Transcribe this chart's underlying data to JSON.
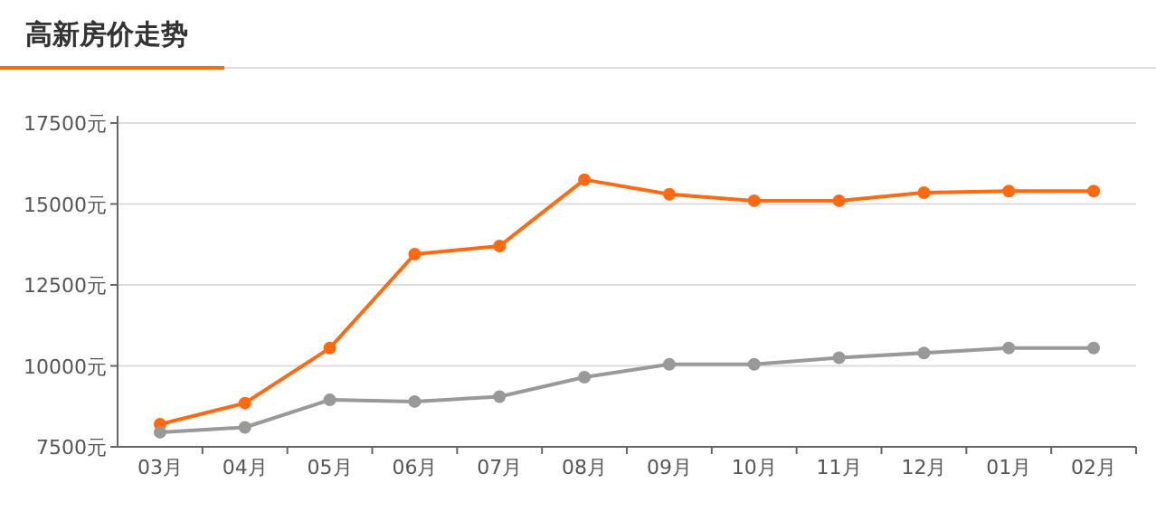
{
  "chart_data": {
    "type": "line",
    "title": "高新房价走势",
    "categories": [
      "03月",
      "04月",
      "05月",
      "06月",
      "07月",
      "08月",
      "09月",
      "10月",
      "11月",
      "12月",
      "01月",
      "02月"
    ],
    "series": [
      {
        "color": "#ff6a10",
        "values": [
          8200,
          8850,
          10550,
          13450,
          13700,
          15750,
          15300,
          15100,
          15100,
          15350,
          15400,
          15400
        ]
      },
      {
        "color": "#999999",
        "values": [
          7950,
          8100,
          8950,
          8900,
          9050,
          9650,
          10050,
          10050,
          10250,
          10400,
          10550,
          10550
        ]
      }
    ],
    "ylim": [
      7500,
      17500
    ],
    "yticks": [
      {
        "value": 7500,
        "label": "7500元"
      },
      {
        "value": 10000,
        "label": "10000元"
      },
      {
        "value": 12500,
        "label": "12500元"
      },
      {
        "value": 15000,
        "label": "15000元"
      },
      {
        "value": 17500,
        "label": "17500元"
      }
    ],
    "grid": "y",
    "marker": "circle",
    "line_style": "solid"
  }
}
